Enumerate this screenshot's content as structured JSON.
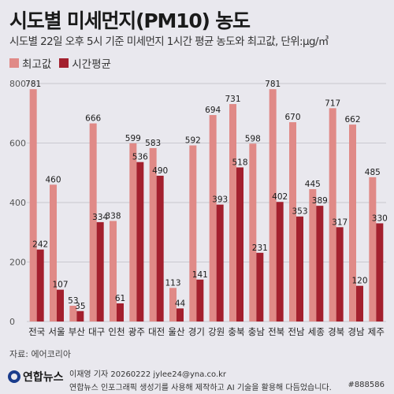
{
  "header": {
    "title": "시도별 미세먼지(PM10) 농도",
    "subtitle": "시도별 22일 오후 5시 기준 미세먼지 1시간 평균 농도와 최고값, 단위:μg/㎥"
  },
  "colors": {
    "max": "#e08a87",
    "avg": "#a3202e",
    "grid": "#c9c8cf",
    "background": "#e9e8ee"
  },
  "chart_data": {
    "type": "bar",
    "categories": [
      "전국",
      "서울",
      "부산",
      "대구",
      "인천",
      "광주",
      "대전",
      "울산",
      "경기",
      "강원",
      "충북",
      "충남",
      "전북",
      "전남",
      "세종",
      "경북",
      "경남",
      "제주"
    ],
    "series": [
      {
        "name": "최고값",
        "values": [
          781,
          460,
          53,
          666,
          338,
          599,
          583,
          113,
          592,
          694,
          731,
          598,
          781,
          670,
          445,
          717,
          662,
          485
        ]
      },
      {
        "name": "시간평균",
        "values": [
          242,
          107,
          35,
          334,
          61,
          536,
          490,
          44,
          141,
          393,
          518,
          231,
          402,
          353,
          389,
          317,
          120,
          330
        ]
      }
    ],
    "yticks": [
      "0",
      "200",
      "400",
      "600",
      "800"
    ],
    "ylim": [
      0,
      800
    ],
    "legend": "top-left",
    "grid": true
  },
  "footer": {
    "source": "자료: 에어코리아",
    "logo": "연합뉴스",
    "byline": "이재영 기자 20260222 jylee24@yna.co.kr",
    "notice": "연합뉴스 인포그래픽 생성기를 사용해 제작하고 AI 기술을 활용해 다듬었습니다.",
    "code": "#888586"
  }
}
